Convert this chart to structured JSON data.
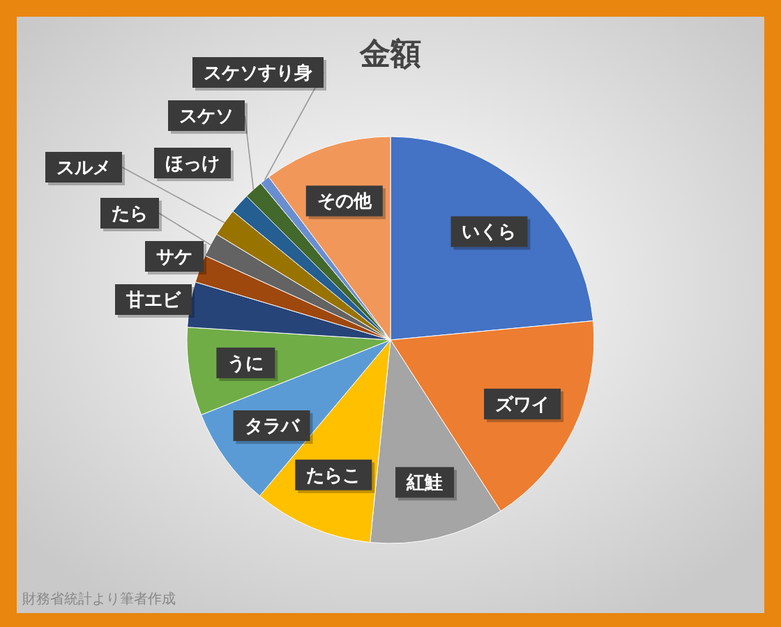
{
  "chart_data": {
    "type": "pie",
    "title": "金額",
    "categories": [
      "いくら",
      "ズワイ",
      "紅鮭",
      "たらこ",
      "タラバ",
      "うに",
      "甘エビ",
      "サケ",
      "たら",
      "スルメ",
      "ほっけ",
      "スケソ",
      "スケソすり身",
      "その他"
    ],
    "values": [
      23.5,
      17.4,
      10.7,
      9.5,
      7.9,
      7.0,
      3.6,
      2.2,
      1.9,
      2.2,
      1.6,
      1.5,
      0.8,
      10.2
    ],
    "colors": [
      "#4472c4",
      "#ed7d31",
      "#a5a5a5",
      "#ffc000",
      "#5b9bd5",
      "#70ad47",
      "#264478",
      "#9e480e",
      "#636363",
      "#997300",
      "#255e91",
      "#43682b",
      "#698ed0",
      "#f1975a"
    ],
    "annotations": [
      "財務省統計より筆者作成"
    ]
  }
}
